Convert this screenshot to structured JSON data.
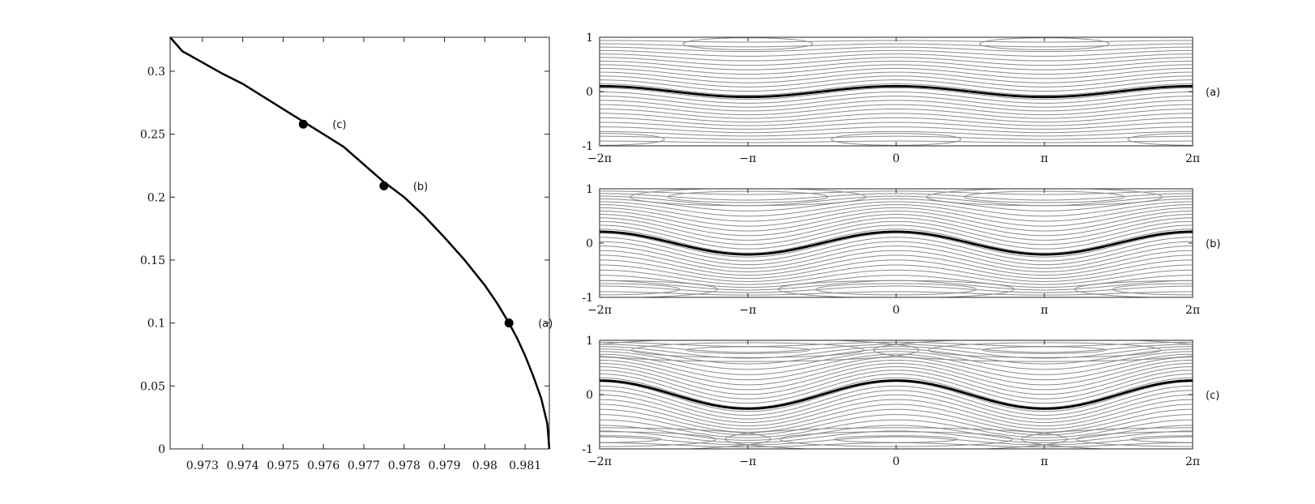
{
  "chart_data": [
    {
      "type": "line",
      "title": "",
      "xlabel": "",
      "ylabel": "",
      "xlim": [
        0.9722,
        0.9816
      ],
      "ylim": [
        0,
        0.327
      ],
      "xticks": [
        {
          "value": 0.973,
          "label": "0.973"
        },
        {
          "value": 0.974,
          "label": "0.974"
        },
        {
          "value": 0.975,
          "label": "0.975"
        },
        {
          "value": 0.976,
          "label": "0.976"
        },
        {
          "value": 0.977,
          "label": "0.977"
        },
        {
          "value": 0.978,
          "label": "0.978"
        },
        {
          "value": 0.979,
          "label": "0.979"
        },
        {
          "value": 0.98,
          "label": "0.98"
        },
        {
          "value": 0.981,
          "label": "0.981"
        }
      ],
      "yticks": [
        {
          "value": 0,
          "label": "0"
        },
        {
          "value": 0.05,
          "label": "0.05"
        },
        {
          "value": 0.1,
          "label": "0.1"
        },
        {
          "value": 0.15,
          "label": "0.15"
        },
        {
          "value": 0.2,
          "label": "0.2"
        },
        {
          "value": 0.25,
          "label": "0.25"
        },
        {
          "value": 0.3,
          "label": "0.3"
        }
      ],
      "series": [
        {
          "x": [
            0.9816,
            0.98155,
            0.9814,
            0.9812,
            0.981,
            0.9808,
            0.9806,
            0.9803,
            0.98,
            0.9795,
            0.979,
            0.9785,
            0.978,
            0.9775,
            0.977,
            0.9765,
            0.976,
            0.9755,
            0.975,
            0.9745,
            0.974,
            0.9735,
            0.973,
            0.9725,
            0.9722
          ],
          "y": [
            0,
            0.02,
            0.04,
            0.058,
            0.074,
            0.088,
            0.1,
            0.116,
            0.13,
            0.15,
            0.168,
            0.185,
            0.2,
            0.212,
            0.226,
            0.24,
            0.25,
            0.26,
            0.27,
            0.28,
            0.29,
            0.298,
            0.307,
            0.316,
            0.327
          ]
        }
      ],
      "points": [
        {
          "label": "(c)",
          "x": 0.9755,
          "y": 0.258
        },
        {
          "label": "(b)",
          "x": 0.9775,
          "y": 0.209
        },
        {
          "label": "(a)",
          "x": 0.9806,
          "y": 0.1
        }
      ]
    },
    {
      "type": "line",
      "panel": "(a)",
      "title": "",
      "xlim": [
        -6.2832,
        6.2832
      ],
      "ylim": [
        -1,
        1
      ],
      "xticks": [
        {
          "value": -6.2832,
          "label": "−2π"
        },
        {
          "value": -3.1416,
          "label": "−π"
        },
        {
          "value": 0,
          "label": "0"
        },
        {
          "value": 3.1416,
          "label": "π"
        },
        {
          "value": 6.2832,
          "label": "2π"
        }
      ],
      "yticks": [
        {
          "value": -1,
          "label": "-1"
        },
        {
          "value": 0,
          "label": "0"
        },
        {
          "value": 1,
          "label": "1"
        }
      ],
      "series": [
        {
          "x": [
            -6.2832,
            -3.1416,
            0,
            3.1416,
            6.2832
          ],
          "y": [
            0.1,
            -0.1,
            0.1,
            -0.1,
            0.1
          ],
          "style": "bold interface"
        }
      ],
      "streamline_count": 26,
      "amplitude": 0.1
    },
    {
      "type": "line",
      "panel": "(b)",
      "title": "",
      "xlim": [
        -6.2832,
        6.2832
      ],
      "ylim": [
        -1,
        1
      ],
      "xticks": [
        {
          "value": -6.2832,
          "label": "−2π"
        },
        {
          "value": -3.1416,
          "label": "−π"
        },
        {
          "value": 0,
          "label": "0"
        },
        {
          "value": 3.1416,
          "label": "π"
        },
        {
          "value": 6.2832,
          "label": "2π"
        }
      ],
      "yticks": [
        {
          "value": -1,
          "label": "-1"
        },
        {
          "value": 0,
          "label": "0"
        },
        {
          "value": 1,
          "label": "1"
        }
      ],
      "series": [
        {
          "x": [
            -6.2832,
            -3.1416,
            0,
            3.1416,
            6.2832
          ],
          "y": [
            0.21,
            -0.21,
            0.21,
            -0.21,
            0.21
          ],
          "style": "bold interface"
        }
      ],
      "streamline_count": 26,
      "amplitude": 0.21
    },
    {
      "type": "line",
      "panel": "(c)",
      "title": "",
      "xlim": [
        -6.2832,
        6.2832
      ],
      "ylim": [
        -1,
        1
      ],
      "xticks": [
        {
          "value": -6.2832,
          "label": "−2π"
        },
        {
          "value": -3.1416,
          "label": "−π"
        },
        {
          "value": 0,
          "label": "0"
        },
        {
          "value": 3.1416,
          "label": "π"
        },
        {
          "value": 6.2832,
          "label": "2π"
        }
      ],
      "yticks": [
        {
          "value": -1,
          "label": "-1"
        },
        {
          "value": 0,
          "label": "0"
        },
        {
          "value": 1,
          "label": "1"
        }
      ],
      "series": [
        {
          "x": [
            -6.2832,
            -3.1416,
            0,
            3.1416,
            6.2832
          ],
          "y": [
            0.26,
            -0.26,
            0.26,
            -0.26,
            0.26
          ],
          "style": "bold interface"
        }
      ],
      "streamline_count": 26,
      "amplitude": 0.26
    }
  ],
  "colors": {
    "curve": "#000000",
    "streamline": "#8a8a8a",
    "frame": "#222222"
  }
}
